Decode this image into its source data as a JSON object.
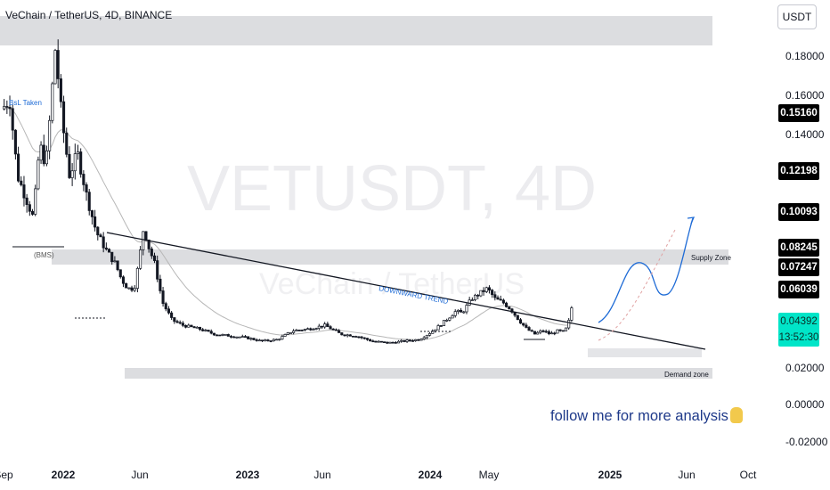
{
  "header": {
    "title": "VeChain / TetherUS, 4D, BINANCE"
  },
  "unit_label": "USDT",
  "watermark": {
    "symbol": "VETUSDT, 4D",
    "name": "VeChain / TetherUS"
  },
  "follow_text": "follow me for more analysis",
  "annotations": {
    "bsl": "BsL Taken",
    "bms": "(BMS)",
    "trend": "DOWNWARD TREND",
    "supply": "Supply Zone",
    "demand": "Demand zone"
  },
  "colors": {
    "candle": "#131722",
    "ema": "#b7b7b7",
    "zone": "#dcdde0",
    "trend": "#131722",
    "projection": "#1e6bd6",
    "tag_bg": "#000000",
    "current_tag_bg": "#00e5c8"
  },
  "price_tags": [
    "0.15160",
    "0.12198",
    "0.10093",
    "0.08245",
    "0.07247",
    "0.06039"
  ],
  "current_price": {
    "value": "0.04392",
    "countdown": "13:52:30"
  },
  "chart_data": {
    "type": "candlestick",
    "title": "VeChain / TetherUS, 4D, BINANCE",
    "xlabel": "",
    "ylabel": "USDT",
    "ylim": [
      -0.02,
      0.19
    ],
    "y_ticks": [
      "0.18000",
      "0.16000",
      "0.14000",
      "0.02000",
      "0.00000",
      "-0.02000"
    ],
    "x_ticks": [
      "Sep",
      "2022",
      "Jun",
      "2023",
      "Jun",
      "2024",
      "May",
      "2025",
      "Jun",
      "Oct"
    ],
    "x_ticks_bold": [
      "2022",
      "2023",
      "2024",
      "2025"
    ],
    "price_path": [
      {
        "t": 0.0,
        "p": 0.15
      },
      {
        "t": 0.5,
        "p": 0.155
      },
      {
        "t": 1.0,
        "p": 0.112
      },
      {
        "t": 1.5,
        "p": 0.1
      },
      {
        "t": 2.0,
        "p": 0.088
      },
      {
        "t": 2.4,
        "p": 0.13
      },
      {
        "t": 2.8,
        "p": 0.118
      },
      {
        "t": 3.1,
        "p": 0.15
      },
      {
        "t": 3.4,
        "p": 0.185
      },
      {
        "t": 3.8,
        "p": 0.145
      },
      {
        "t": 4.3,
        "p": 0.112
      },
      {
        "t": 4.8,
        "p": 0.125
      },
      {
        "t": 5.4,
        "p": 0.1
      },
      {
        "t": 6.0,
        "p": 0.08
      },
      {
        "t": 6.6,
        "p": 0.07
      },
      {
        "t": 7.2,
        "p": 0.062
      },
      {
        "t": 7.6,
        "p": 0.053
      },
      {
        "t": 8.0,
        "p": 0.048
      },
      {
        "t": 8.4,
        "p": 0.048
      },
      {
        "t": 8.7,
        "p": 0.063
      },
      {
        "t": 9.0,
        "p": 0.083
      },
      {
        "t": 9.3,
        "p": 0.072
      },
      {
        "t": 9.7,
        "p": 0.062
      },
      {
        "t": 10.2,
        "p": 0.04
      },
      {
        "t": 10.8,
        "p": 0.03
      },
      {
        "t": 11.5,
        "p": 0.027
      },
      {
        "t": 12.5,
        "p": 0.025
      },
      {
        "t": 13.5,
        "p": 0.022
      },
      {
        "t": 14.5,
        "p": 0.021
      },
      {
        "t": 15.5,
        "p": 0.02
      },
      {
        "t": 16.5,
        "p": 0.018
      },
      {
        "t": 17.5,
        "p": 0.019
      },
      {
        "t": 18.5,
        "p": 0.024
      },
      {
        "t": 19.5,
        "p": 0.025
      },
      {
        "t": 20.5,
        "p": 0.027
      },
      {
        "t": 21.5,
        "p": 0.022
      },
      {
        "t": 22.5,
        "p": 0.021
      },
      {
        "t": 23.5,
        "p": 0.018
      },
      {
        "t": 24.5,
        "p": 0.017
      },
      {
        "t": 25.5,
        "p": 0.018
      },
      {
        "t": 26.5,
        "p": 0.019
      },
      {
        "t": 27.2,
        "p": 0.023
      },
      {
        "t": 27.8,
        "p": 0.027
      },
      {
        "t": 28.3,
        "p": 0.031
      },
      {
        "t": 28.8,
        "p": 0.035
      },
      {
        "t": 29.2,
        "p": 0.034
      },
      {
        "t": 29.8,
        "p": 0.042
      },
      {
        "t": 30.3,
        "p": 0.045
      },
      {
        "t": 30.8,
        "p": 0.048
      },
      {
        "t": 31.3,
        "p": 0.042
      },
      {
        "t": 31.8,
        "p": 0.04
      },
      {
        "t": 32.3,
        "p": 0.036
      },
      {
        "t": 32.8,
        "p": 0.03
      },
      {
        "t": 33.3,
        "p": 0.025
      },
      {
        "t": 33.8,
        "p": 0.022
      },
      {
        "t": 34.3,
        "p": 0.024
      },
      {
        "t": 34.8,
        "p": 0.022
      },
      {
        "t": 35.3,
        "p": 0.024
      },
      {
        "t": 35.7,
        "p": 0.023
      },
      {
        "t": 36.0,
        "p": 0.03
      },
      {
        "t": 36.3,
        "p": 0.044
      }
    ]
  }
}
